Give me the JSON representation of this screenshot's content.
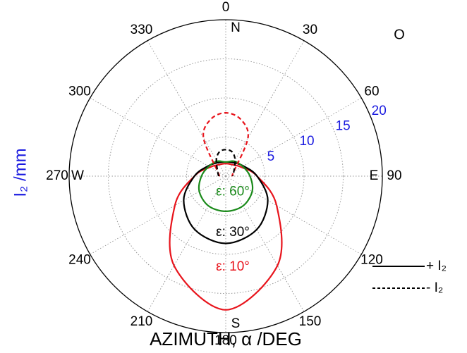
{
  "chart_data": {
    "type": "polar",
    "xlabel": "AZIMUTH, α  /DEG",
    "ylabel": "I₂ /mm",
    "annotation": "O",
    "rlim": [
      0,
      20
    ],
    "rticks": [
      5,
      10,
      15,
      20
    ],
    "thetaticks": [
      0,
      30,
      60,
      90,
      120,
      150,
      180,
      210,
      240,
      270,
      300,
      330
    ],
    "compass": [
      {
        "value": 0,
        "label": "N"
      },
      {
        "value": 90,
        "label": "E"
      },
      {
        "value": 180,
        "label": "S"
      },
      {
        "value": 270,
        "label": "W"
      }
    ],
    "grid": true,
    "series": [
      {
        "name": "ε: 10°",
        "color": "#e8141c",
        "dashed": false,
        "theta": [
          0,
          30,
          60,
          90,
          120,
          150,
          180,
          210,
          240,
          270,
          300,
          330
        ],
        "values": [
          1.6,
          1.7,
          2.3,
          4.0,
          7.5,
          13.2,
          17.1,
          13.2,
          7.5,
          4.0,
          2.3,
          1.7
        ]
      },
      {
        "name": "ε: 30°",
        "color": "#000000",
        "dashed": false,
        "theta": [
          0,
          30,
          60,
          90,
          120,
          150,
          180,
          210,
          240,
          270,
          300,
          330
        ],
        "values": [
          1.8,
          2.0,
          2.6,
          4.0,
          6.2,
          7.9,
          8.6,
          7.9,
          6.2,
          4.0,
          2.6,
          2.0
        ]
      },
      {
        "name": "ε: 60°",
        "color": "#1a8a1a",
        "dashed": false,
        "theta": [
          0,
          30,
          60,
          90,
          120,
          150,
          180,
          210,
          240,
          270,
          300,
          330
        ],
        "values": [
          1.8,
          2.2,
          2.5,
          3.1,
          3.9,
          4.4,
          4.5,
          4.4,
          3.9,
          3.1,
          2.5,
          2.2
        ]
      },
      {
        "color": "#e8141c",
        "dashed": true,
        "theta": [
          270,
          300,
          330,
          345,
          0,
          15,
          30,
          60,
          90
        ],
        "values": [
          0.8,
          1.2,
          5.7,
          7.5,
          8.1,
          7.5,
          5.7,
          1.2,
          0.8
        ]
      },
      {
        "color": "#000000",
        "dashed": true,
        "theta": [
          270,
          300,
          330,
          345,
          0,
          15,
          30,
          60,
          90
        ],
        "values": [
          0.9,
          1.2,
          2.4,
          3.2,
          3.4,
          3.2,
          2.4,
          1.2,
          0.9
        ]
      }
    ],
    "legend": [
      {
        "label": "+ I₂",
        "dashed": false
      },
      {
        "label": "- I₂",
        "dashed": true
      }
    ]
  }
}
